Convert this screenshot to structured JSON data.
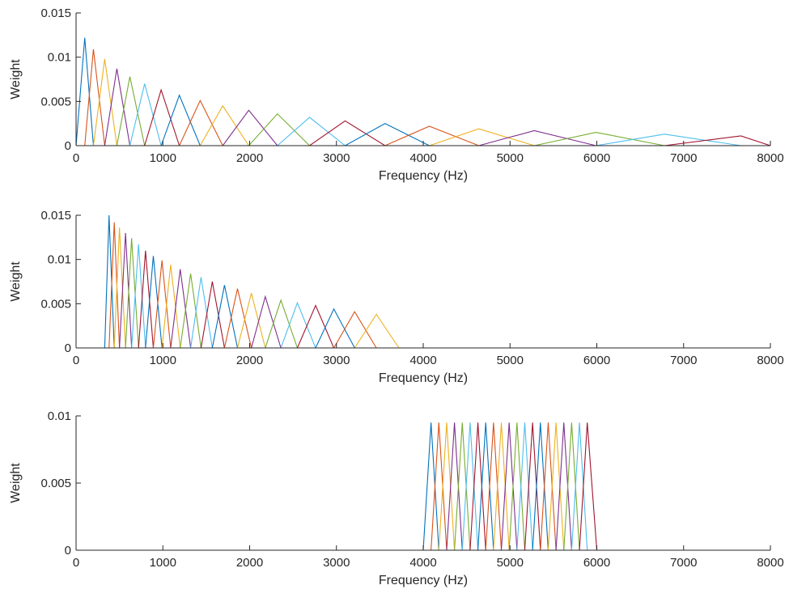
{
  "chart_data": [
    {
      "type": "line",
      "description_of_series": "triangular filterbank",
      "xlabel": "Frequency (Hz)",
      "ylabel": "Weight",
      "xlim": [
        0,
        8000
      ],
      "ylim": [
        0,
        0.015
      ],
      "xticks": [
        "0",
        "1000",
        "2000",
        "3000",
        "4000",
        "5000",
        "6000",
        "7000",
        "8000"
      ],
      "yticks": [
        "0",
        "0.005",
        "0.01",
        "0.015"
      ],
      "filters": [
        {
          "f": [
            0,
            100,
            200
          ],
          "peak": 0.0122
        },
        {
          "f": [
            100,
            200,
            330
          ],
          "peak": 0.0109
        },
        {
          "f": [
            200,
            330,
            470
          ],
          "peak": 0.0098
        },
        {
          "f": [
            330,
            470,
            620
          ],
          "peak": 0.0087
        },
        {
          "f": [
            470,
            620,
            790
          ],
          "peak": 0.0078
        },
        {
          "f": [
            620,
            790,
            980
          ],
          "peak": 0.007
        },
        {
          "f": [
            790,
            980,
            1190
          ],
          "peak": 0.0063
        },
        {
          "f": [
            980,
            1190,
            1430
          ],
          "peak": 0.0057
        },
        {
          "f": [
            1190,
            1430,
            1690
          ],
          "peak": 0.0051
        },
        {
          "f": [
            1430,
            1690,
            1990
          ],
          "peak": 0.0045
        },
        {
          "f": [
            1690,
            1990,
            2320
          ],
          "peak": 0.004
        },
        {
          "f": [
            1990,
            2320,
            2690
          ],
          "peak": 0.0036
        },
        {
          "f": [
            2320,
            2690,
            3100
          ],
          "peak": 0.0032
        },
        {
          "f": [
            2690,
            3100,
            3560
          ],
          "peak": 0.0028
        },
        {
          "f": [
            3100,
            3560,
            4070
          ],
          "peak": 0.0025
        },
        {
          "f": [
            3560,
            4070,
            4640
          ],
          "peak": 0.0022
        },
        {
          "f": [
            4070,
            4640,
            5280
          ],
          "peak": 0.0019
        },
        {
          "f": [
            4640,
            5280,
            5990
          ],
          "peak": 0.0017
        },
        {
          "f": [
            5280,
            5990,
            6780
          ],
          "peak": 0.0015
        },
        {
          "f": [
            5990,
            6780,
            7660
          ],
          "peak": 0.0013
        },
        {
          "f": [
            6780,
            7660,
            8000
          ],
          "peak": 0.0011
        }
      ]
    },
    {
      "type": "line",
      "xlabel": "Frequency (Hz)",
      "ylabel": "Weight",
      "xlim": [
        0,
        8000
      ],
      "ylim": [
        0,
        0.015
      ],
      "xticks": [
        "0",
        "1000",
        "2000",
        "3000",
        "4000",
        "5000",
        "6000",
        "7000",
        "8000"
      ],
      "yticks": [
        "0",
        "0.005",
        "0.01",
        "0.015"
      ],
      "filters": [
        {
          "f": [
            330,
            380,
            440
          ],
          "peak": 0.015
        },
        {
          "f": [
            380,
            440,
            500
          ],
          "peak": 0.0142
        },
        {
          "f": [
            440,
            500,
            570
          ],
          "peak": 0.0136
        },
        {
          "f": [
            500,
            570,
            640
          ],
          "peak": 0.013
        },
        {
          "f": [
            570,
            640,
            720
          ],
          "peak": 0.0124
        },
        {
          "f": [
            640,
            720,
            800
          ],
          "peak": 0.0117
        },
        {
          "f": [
            720,
            800,
            890
          ],
          "peak": 0.011
        },
        {
          "f": [
            800,
            890,
            990
          ],
          "peak": 0.0104
        },
        {
          "f": [
            890,
            990,
            1090
          ],
          "peak": 0.0099
        },
        {
          "f": [
            990,
            1090,
            1200
          ],
          "peak": 0.0094
        },
        {
          "f": [
            1090,
            1200,
            1320
          ],
          "peak": 0.0089
        },
        {
          "f": [
            1200,
            1320,
            1440
          ],
          "peak": 0.0084
        },
        {
          "f": [
            1320,
            1440,
            1570
          ],
          "peak": 0.008
        },
        {
          "f": [
            1440,
            1570,
            1710
          ],
          "peak": 0.0075
        },
        {
          "f": [
            1570,
            1710,
            1860
          ],
          "peak": 0.0071
        },
        {
          "f": [
            1710,
            1860,
            2020
          ],
          "peak": 0.0067
        },
        {
          "f": [
            1860,
            2020,
            2180
          ],
          "peak": 0.0062
        },
        {
          "f": [
            2020,
            2180,
            2360
          ],
          "peak": 0.0058
        },
        {
          "f": [
            2180,
            2360,
            2550
          ],
          "peak": 0.0054
        },
        {
          "f": [
            2360,
            2550,
            2760
          ],
          "peak": 0.0051
        },
        {
          "f": [
            2550,
            2760,
            2970
          ],
          "peak": 0.0048
        },
        {
          "f": [
            2760,
            2970,
            3210
          ],
          "peak": 0.0044
        },
        {
          "f": [
            2970,
            3210,
            3460
          ],
          "peak": 0.0041
        },
        {
          "f": [
            3210,
            3460,
            3720
          ],
          "peak": 0.0038
        }
      ]
    },
    {
      "type": "line",
      "xlabel": "Frequency (Hz)",
      "ylabel": "Weight",
      "xlim": [
        0,
        8000
      ],
      "ylim": [
        0,
        0.01
      ],
      "xticks": [
        "0",
        "1000",
        "2000",
        "3000",
        "4000",
        "5000",
        "6000",
        "7000",
        "8000"
      ],
      "yticks": [
        "0",
        "0.005",
        "0.01"
      ],
      "filters": [
        {
          "f": [
            4000,
            4090,
            4180
          ],
          "peak": 0.0095
        },
        {
          "f": [
            4090,
            4180,
            4270
          ],
          "peak": 0.0095
        },
        {
          "f": [
            4180,
            4270,
            4360
          ],
          "peak": 0.0095
        },
        {
          "f": [
            4270,
            4360,
            4450
          ],
          "peak": 0.0095
        },
        {
          "f": [
            4360,
            4450,
            4540
          ],
          "peak": 0.0095
        },
        {
          "f": [
            4450,
            4540,
            4630
          ],
          "peak": 0.0095
        },
        {
          "f": [
            4540,
            4630,
            4720
          ],
          "peak": 0.0095
        },
        {
          "f": [
            4630,
            4720,
            4810
          ],
          "peak": 0.0095
        },
        {
          "f": [
            4720,
            4810,
            4900
          ],
          "peak": 0.0095
        },
        {
          "f": [
            4810,
            4900,
            4990
          ],
          "peak": 0.0095
        },
        {
          "f": [
            4900,
            4990,
            5080
          ],
          "peak": 0.0095
        },
        {
          "f": [
            4990,
            5080,
            5170
          ],
          "peak": 0.0095
        },
        {
          "f": [
            5080,
            5170,
            5260
          ],
          "peak": 0.0095
        },
        {
          "f": [
            5170,
            5260,
            5350
          ],
          "peak": 0.0095
        },
        {
          "f": [
            5260,
            5350,
            5440
          ],
          "peak": 0.0095
        },
        {
          "f": [
            5350,
            5440,
            5530
          ],
          "peak": 0.0095
        },
        {
          "f": [
            5440,
            5530,
            5620
          ],
          "peak": 0.0095
        },
        {
          "f": [
            5530,
            5620,
            5710
          ],
          "peak": 0.0095
        },
        {
          "f": [
            5620,
            5710,
            5800
          ],
          "peak": 0.0095
        },
        {
          "f": [
            5710,
            5800,
            5890
          ],
          "peak": 0.0095
        },
        {
          "f": [
            5800,
            5890,
            6000
          ],
          "peak": 0.0095
        }
      ]
    }
  ],
  "colors": [
    "#0072BD",
    "#D95319",
    "#EDB120",
    "#7E2F8E",
    "#77AC30",
    "#4DBEEE",
    "#A2142F"
  ]
}
